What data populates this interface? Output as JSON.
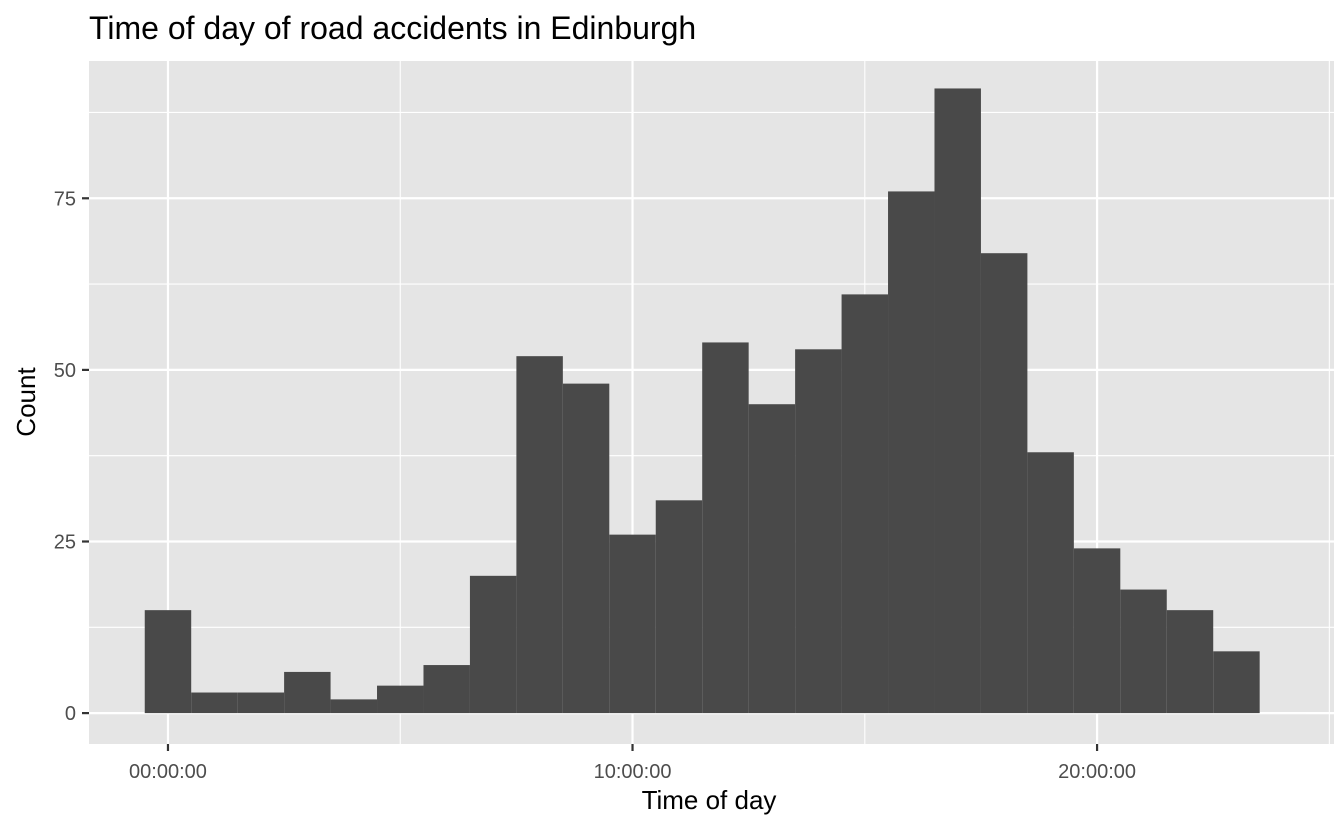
{
  "chart_data": {
    "type": "bar",
    "subtype": "histogram",
    "title": "Time of day of road accidents in Edinburgh",
    "xlabel": "Time of day",
    "ylabel": "Count",
    "x_unit": "hours since midnight",
    "bin_width_hours": 1,
    "bin_centers": [
      0,
      1,
      2,
      3,
      4,
      5,
      6,
      7,
      8,
      9,
      10,
      11,
      12,
      13,
      14,
      15,
      16,
      17,
      18,
      19,
      20,
      21,
      22,
      23,
      24
    ],
    "values": [
      15,
      3,
      3,
      6,
      2,
      4,
      7,
      20,
      52,
      48,
      26,
      31,
      54,
      45,
      53,
      61,
      76,
      91,
      67,
      38,
      24,
      18,
      15,
      9,
      0
    ],
    "x_ticks": [
      {
        "value": 0,
        "label": "00:00:00"
      },
      {
        "value": 10,
        "label": "10:00:00"
      },
      {
        "value": 20,
        "label": "20:00:00"
      }
    ],
    "y_ticks": [
      0,
      25,
      50,
      75
    ],
    "xlim": [
      -1.7,
      25.1
    ],
    "ylim": [
      -4.5,
      95
    ],
    "grid": true,
    "colors": {
      "panel_background": "#e5e5e5",
      "grid_line": "#ffffff",
      "bar_fill": "#494949",
      "tick_text": "#4d4d4d",
      "tick_mark": "#333333",
      "title_text": "#000000"
    }
  }
}
